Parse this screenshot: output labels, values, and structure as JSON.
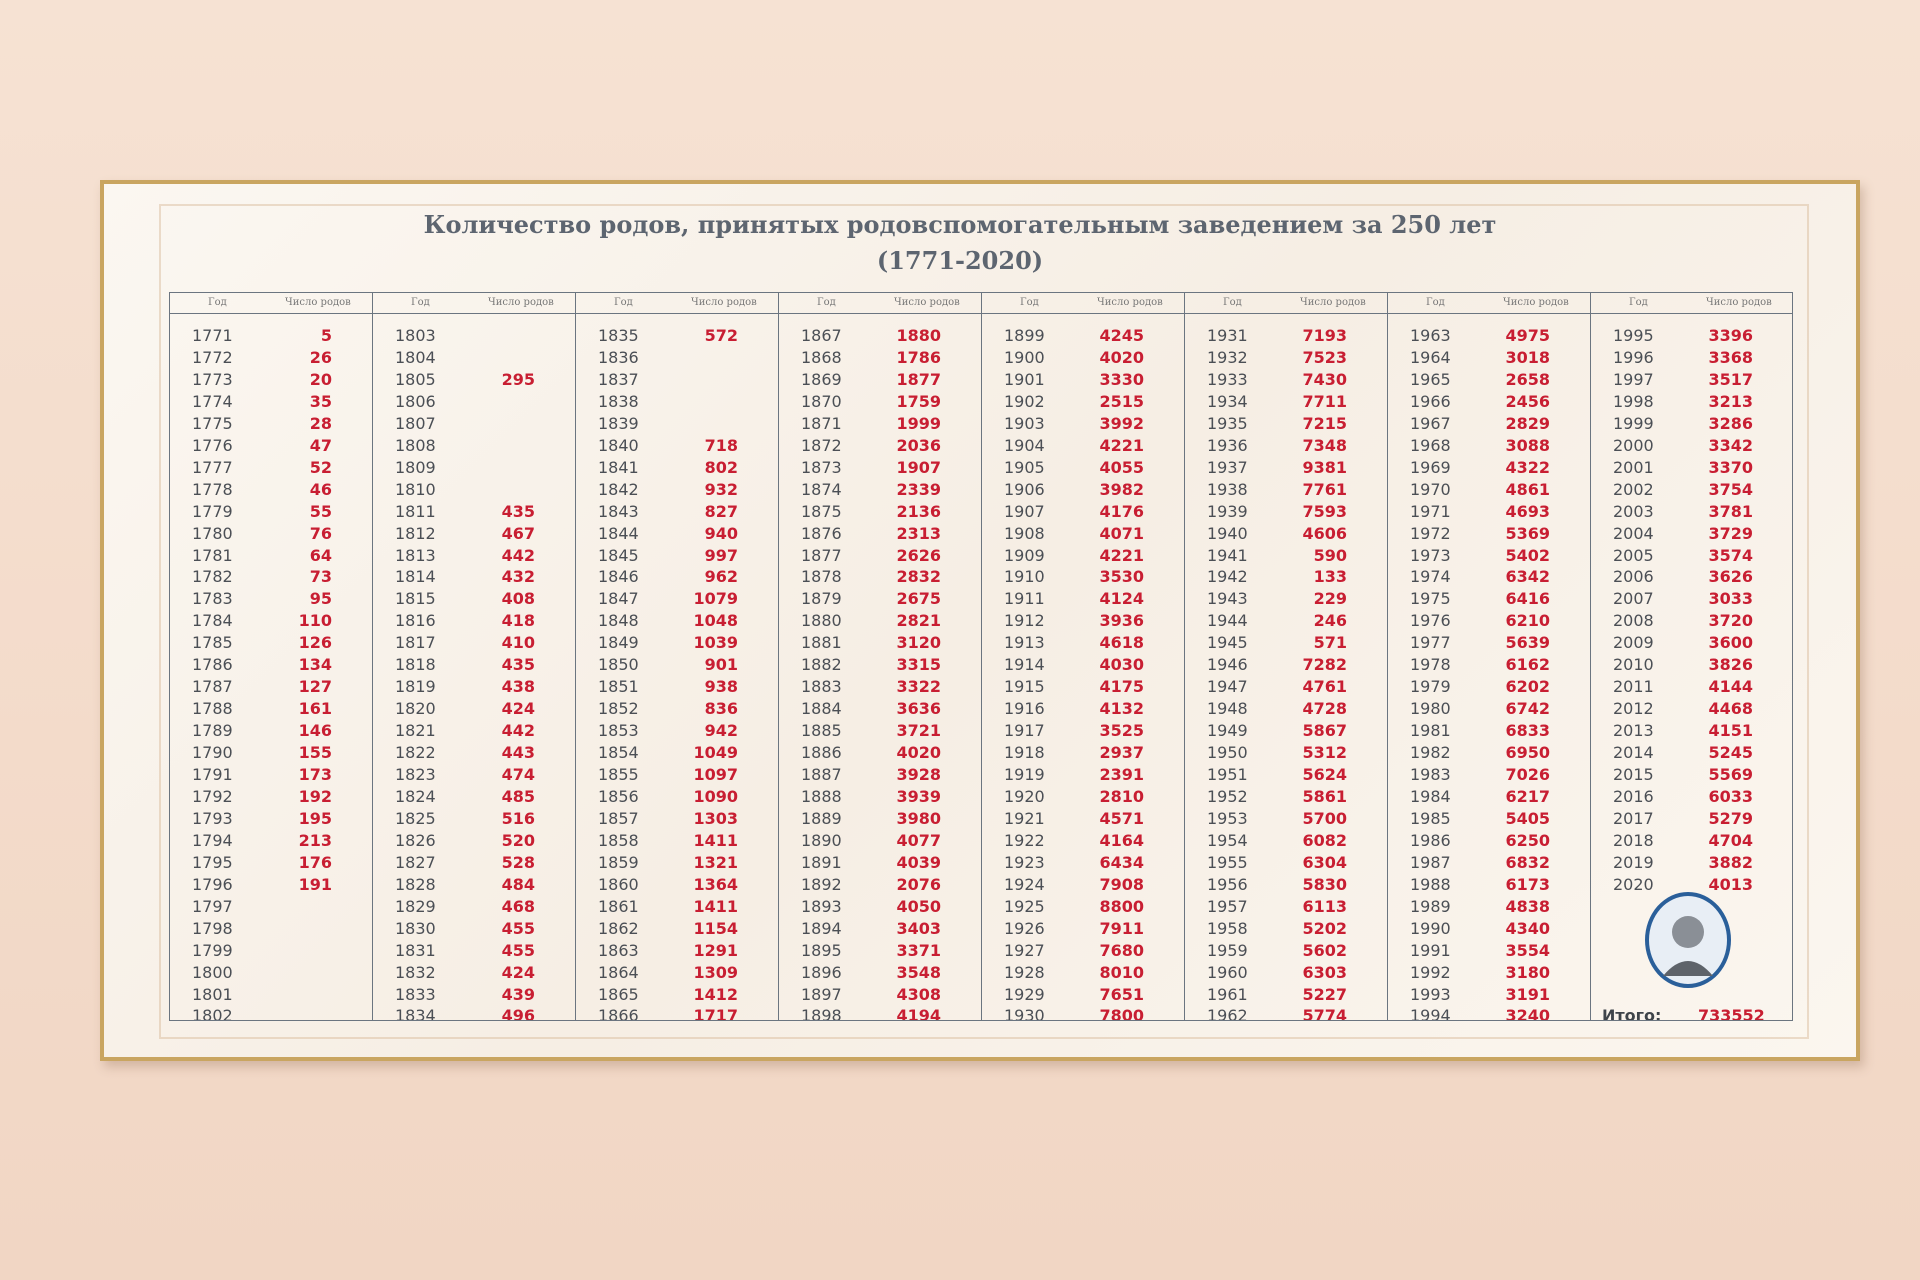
{
  "title": "Количество родов, принятых родовспомогательным заведением за 250 лет",
  "subtitle": "(1771-2020)",
  "table": {
    "header": [
      "Год",
      "Число родов"
    ],
    "columns": [
      {
        "years": [
          1771,
          1772,
          1773,
          1774,
          1775,
          1776,
          1777,
          1778,
          1779,
          1780,
          1781,
          1782,
          1783,
          1784,
          1785,
          1786,
          1787,
          1788,
          1789,
          1790,
          1791,
          1792,
          1793,
          1794,
          1795,
          1796,
          1797,
          1798,
          1799,
          1800,
          1801,
          1802
        ],
        "births": [
          5,
          26,
          20,
          35,
          28,
          47,
          52,
          46,
          55,
          76,
          64,
          73,
          95,
          110,
          126,
          134,
          127,
          161,
          146,
          155,
          173,
          192,
          195,
          213,
          176,
          191,
          null,
          null,
          null,
          null,
          null,
          null
        ]
      },
      {
        "years": [
          1803,
          1804,
          1805,
          1806,
          1807,
          1808,
          1809,
          1810,
          1811,
          1812,
          1813,
          1814,
          1815,
          1816,
          1817,
          1818,
          1819,
          1820,
          1821,
          1822,
          1823,
          1824,
          1825,
          1826,
          1827,
          1828,
          1829,
          1830,
          1831,
          1832,
          1833,
          1834
        ],
        "births": [
          null,
          null,
          295,
          null,
          null,
          null,
          null,
          null,
          435,
          467,
          442,
          432,
          408,
          418,
          410,
          435,
          438,
          424,
          442,
          443,
          474,
          485,
          516,
          520,
          528,
          484,
          468,
          455,
          455,
          424,
          439,
          496
        ]
      },
      {
        "years": [
          1835,
          1836,
          1837,
          1838,
          1839,
          1840,
          1841,
          1842,
          1843,
          1844,
          1845,
          1846,
          1847,
          1848,
          1849,
          1850,
          1851,
          1852,
          1853,
          1854,
          1855,
          1856,
          1857,
          1858,
          1859,
          1860,
          1861,
          1862,
          1863,
          1864,
          1865,
          1866
        ],
        "births": [
          572,
          null,
          null,
          null,
          null,
          718,
          802,
          932,
          827,
          940,
          997,
          962,
          1079,
          1048,
          1039,
          901,
          938,
          836,
          942,
          1049,
          1097,
          1090,
          1303,
          1411,
          1321,
          1364,
          1411,
          1154,
          1291,
          1309,
          1412,
          1717
        ]
      },
      {
        "years": [
          1867,
          1868,
          1869,
          1870,
          1871,
          1872,
          1873,
          1874,
          1875,
          1876,
          1877,
          1878,
          1879,
          1880,
          1881,
          1882,
          1883,
          1884,
          1885,
          1886,
          1887,
          1888,
          1889,
          1890,
          1891,
          1892,
          1893,
          1894,
          1895,
          1896,
          1897,
          1898
        ],
        "births": [
          1880,
          1786,
          1877,
          1759,
          1999,
          2036,
          1907,
          2339,
          2136,
          2313,
          2626,
          2832,
          2675,
          2821,
          3120,
          3315,
          3322,
          3636,
          3721,
          4020,
          3928,
          3939,
          3980,
          4077,
          4039,
          2076,
          4050,
          3403,
          3371,
          3548,
          4308,
          4194
        ]
      },
      {
        "years": [
          1899,
          1900,
          1901,
          1902,
          1903,
          1904,
          1905,
          1906,
          1907,
          1908,
          1909,
          1910,
          1911,
          1912,
          1913,
          1914,
          1915,
          1916,
          1917,
          1918,
          1919,
          1920,
          1921,
          1922,
          1923,
          1924,
          1925,
          1926,
          1927,
          1928,
          1929,
          1930
        ],
        "births": [
          4245,
          4020,
          3330,
          2515,
          3992,
          4221,
          4055,
          3982,
          4176,
          4071,
          4221,
          3530,
          4124,
          3936,
          4618,
          4030,
          4175,
          4132,
          3525,
          2937,
          2391,
          2810,
          4571,
          4164,
          6434,
          7908,
          8800,
          7911,
          7680,
          8010,
          7651,
          7800
        ]
      },
      {
        "years": [
          1931,
          1932,
          1933,
          1934,
          1935,
          1936,
          1937,
          1938,
          1939,
          1940,
          1941,
          1942,
          1943,
          1944,
          1945,
          1946,
          1947,
          1948,
          1949,
          1950,
          1951,
          1952,
          1953,
          1954,
          1955,
          1956,
          1957,
          1958,
          1959,
          1960,
          1961,
          1962
        ],
        "births": [
          7193,
          7523,
          7430,
          7711,
          7215,
          7348,
          9381,
          7761,
          7593,
          4606,
          590,
          133,
          229,
          246,
          571,
          7282,
          4761,
          4728,
          5867,
          5312,
          5624,
          5861,
          5700,
          6082,
          6304,
          5830,
          6113,
          5202,
          5602,
          6303,
          5227,
          5774
        ]
      },
      {
        "years": [
          1963,
          1964,
          1965,
          1966,
          1967,
          1968,
          1969,
          1970,
          1971,
          1972,
          1973,
          1974,
          1975,
          1976,
          1977,
          1978,
          1979,
          1980,
          1981,
          1982,
          1983,
          1984,
          1985,
          1986,
          1987,
          1988,
          1989,
          1990,
          1991,
          1992,
          1993,
          1994
        ],
        "births": [
          4975,
          3018,
          2658,
          2456,
          2829,
          3088,
          4322,
          4861,
          4693,
          5369,
          5402,
          6342,
          6416,
          6210,
          5639,
          6162,
          6202,
          6742,
          6833,
          6950,
          7026,
          6217,
          5405,
          6250,
          6832,
          6173,
          4838,
          4340,
          3554,
          3180,
          3191,
          3240
        ]
      },
      {
        "years": [
          1995,
          1996,
          1997,
          1998,
          1999,
          2000,
          2001,
          2002,
          2003,
          2004,
          2005,
          2006,
          2007,
          2008,
          2009,
          2010,
          2011,
          2012,
          2013,
          2014,
          2015,
          2016,
          2017,
          2018,
          2019,
          2020
        ],
        "births": [
          3396,
          3368,
          3517,
          3213,
          3286,
          3342,
          3370,
          3754,
          3781,
          3729,
          3574,
          3626,
          3033,
          3720,
          3600,
          3826,
          4144,
          4468,
          4151,
          5245,
          5569,
          6033,
          5279,
          4704,
          3882,
          4013
        ]
      }
    ]
  },
  "total_label": "Итого:",
  "total": 733552
}
